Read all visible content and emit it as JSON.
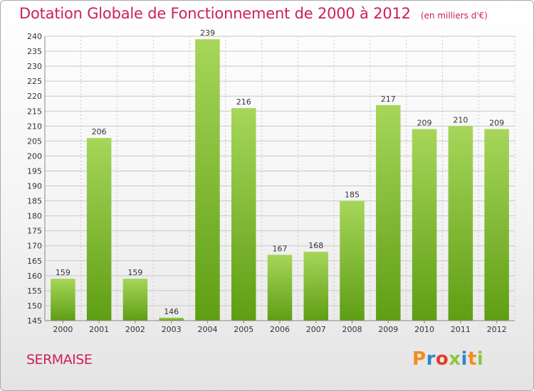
{
  "header": {
    "title": "Dotation Globale de Fonctionnement de 2000 à 2012",
    "subtitle": "(en milliers d'€)"
  },
  "footer": {
    "place": "SERMAISE",
    "brand": "Proxiti",
    "brand_colors": [
      "#f28c1e",
      "#2f86c8",
      "#e43b2c",
      "#8cc63f",
      "#2f86c8",
      "#f28c1e",
      "#8cc63f"
    ]
  },
  "colors": {
    "title": "#cc1f5a",
    "bar_light": "#a6d65a",
    "bar_dark": "#5f9e14",
    "grid": "#c8c8c8",
    "axis_text": "#333333"
  },
  "chart_data": {
    "type": "bar",
    "categories": [
      "2000",
      "2001",
      "2002",
      "2003",
      "2004",
      "2005",
      "2006",
      "2007",
      "2008",
      "2009",
      "2010",
      "2011",
      "2012"
    ],
    "values": [
      159,
      206,
      159,
      146,
      239,
      216,
      167,
      168,
      185,
      217,
      209,
      210,
      209
    ],
    "ylim": [
      145,
      240
    ],
    "yticks": [
      145,
      150,
      155,
      160,
      165,
      170,
      175,
      180,
      185,
      190,
      195,
      200,
      205,
      210,
      215,
      220,
      225,
      230,
      235,
      240
    ],
    "grid": true,
    "legend": "none"
  }
}
